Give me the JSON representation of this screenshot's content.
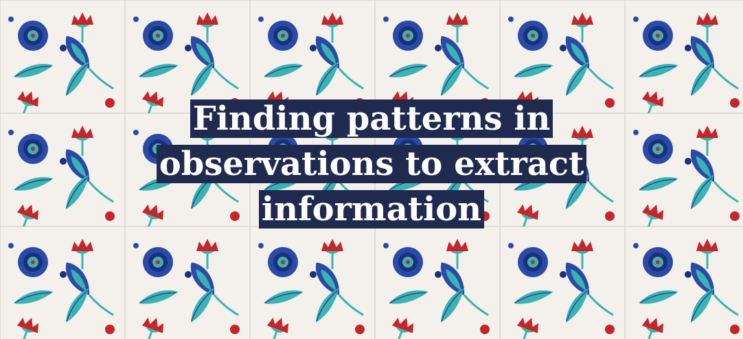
{
  "hero": {
    "title_lines": [
      "Finding patterns in",
      "observations to extract",
      "information"
    ]
  },
  "colors": {
    "background": "#f3f0ea",
    "tile_grid": "#d9d6cf",
    "cobalt": "#2a4aa8",
    "navy": "#1c2f7a",
    "turquoise": "#3bb3b0",
    "red": "#c3262b",
    "title_box": "#1f2a4e",
    "title_text": "#ffffff"
  },
  "icons": {
    "pattern": [
      "tulip-icon",
      "carnation-icon",
      "rosette-icon",
      "leaf-icon"
    ]
  }
}
